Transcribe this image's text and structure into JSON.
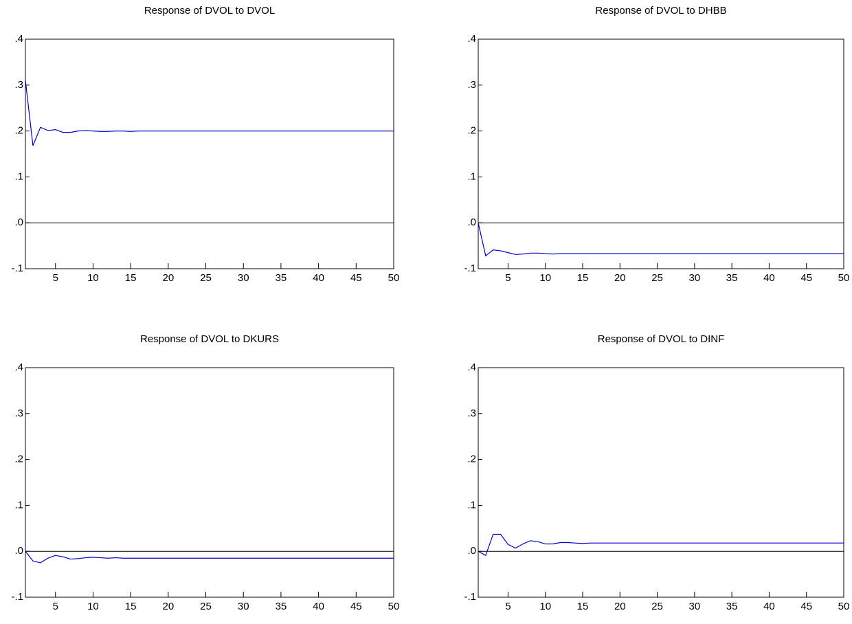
{
  "chart_data": [
    {
      "type": "line",
      "title": "Response of DVOL to DVOL",
      "x": [
        1,
        2,
        3,
        4,
        5,
        6,
        7,
        8,
        9,
        10,
        11,
        12,
        13,
        14,
        15,
        16,
        17,
        18,
        19,
        20,
        21,
        22,
        23,
        24,
        25,
        26,
        27,
        28,
        29,
        30,
        31,
        32,
        33,
        34,
        35,
        36,
        37,
        38,
        39,
        40,
        41,
        42,
        43,
        44,
        45,
        46,
        47,
        48,
        49,
        50
      ],
      "series": [
        {
          "color": "#0000cc",
          "values": [
            0.31,
            0.168,
            0.208,
            0.201,
            0.203,
            0.197,
            0.197,
            0.2,
            0.201,
            0.2,
            0.199,
            0.199,
            0.2,
            0.2,
            0.199,
            0.2,
            0.2,
            0.2,
            0.2,
            0.2,
            0.2,
            0.2,
            0.2,
            0.2,
            0.2,
            0.2,
            0.2,
            0.2,
            0.2,
            0.2,
            0.2,
            0.2,
            0.2,
            0.2,
            0.2,
            0.2,
            0.2,
            0.2,
            0.2,
            0.2,
            0.2,
            0.2,
            0.2,
            0.2,
            0.2,
            0.2,
            0.2,
            0.2,
            0.2,
            0.2
          ]
        }
      ],
      "xlim": [
        1,
        50
      ],
      "xticks": [
        5,
        10,
        15,
        20,
        25,
        30,
        35,
        40,
        45,
        50
      ],
      "ylim": [
        -0.1,
        0.4
      ],
      "yticks": [
        {
          "value": -0.1,
          "label": "-.1"
        },
        {
          "value": 0,
          "label": ".0"
        },
        {
          "value": 0.1,
          "label": ".1"
        },
        {
          "value": 0.2,
          "label": ".2"
        },
        {
          "value": 0.3,
          "label": ".3"
        },
        {
          "value": 0.4,
          "label": ".4"
        }
      ],
      "zero_line": true
    },
    {
      "type": "line",
      "title": "Response of DVOL to DHBB",
      "x": [
        1,
        2,
        3,
        4,
        5,
        6,
        7,
        8,
        9,
        10,
        11,
        12,
        13,
        14,
        15,
        16,
        17,
        18,
        19,
        20,
        21,
        22,
        23,
        24,
        25,
        26,
        27,
        28,
        29,
        30,
        31,
        32,
        33,
        34,
        35,
        36,
        37,
        38,
        39,
        40,
        41,
        42,
        43,
        44,
        45,
        46,
        47,
        48,
        49,
        50
      ],
      "series": [
        {
          "color": "#0000cc",
          "values": [
            0,
            -0.072,
            -0.059,
            -0.061,
            -0.065,
            -0.069,
            -0.068,
            -0.066,
            -0.066,
            -0.067,
            -0.068,
            -0.067,
            -0.067,
            -0.067,
            -0.067,
            -0.067,
            -0.067,
            -0.067,
            -0.067,
            -0.067,
            -0.067,
            -0.067,
            -0.067,
            -0.067,
            -0.067,
            -0.067,
            -0.067,
            -0.067,
            -0.067,
            -0.067,
            -0.067,
            -0.067,
            -0.067,
            -0.067,
            -0.067,
            -0.067,
            -0.067,
            -0.067,
            -0.067,
            -0.067,
            -0.067,
            -0.067,
            -0.067,
            -0.067,
            -0.067,
            -0.067,
            -0.067,
            -0.067,
            -0.067,
            -0.067
          ]
        }
      ],
      "xlim": [
        1,
        50
      ],
      "xticks": [
        5,
        10,
        15,
        20,
        25,
        30,
        35,
        40,
        45,
        50
      ],
      "ylim": [
        -0.1,
        0.4
      ],
      "yticks": [
        {
          "value": -0.1,
          "label": "-.1"
        },
        {
          "value": 0,
          "label": ".0"
        },
        {
          "value": 0.1,
          "label": ".1"
        },
        {
          "value": 0.2,
          "label": ".2"
        },
        {
          "value": 0.3,
          "label": ".3"
        },
        {
          "value": 0.4,
          "label": ".4"
        }
      ],
      "zero_line": true
    },
    {
      "type": "line",
      "title": "Response of DVOL to DKURS",
      "x": [
        1,
        2,
        3,
        4,
        5,
        6,
        7,
        8,
        9,
        10,
        11,
        12,
        13,
        14,
        15,
        16,
        17,
        18,
        19,
        20,
        21,
        22,
        23,
        24,
        25,
        26,
        27,
        28,
        29,
        30,
        31,
        32,
        33,
        34,
        35,
        36,
        37,
        38,
        39,
        40,
        41,
        42,
        43,
        44,
        45,
        46,
        47,
        48,
        49,
        50
      ],
      "series": [
        {
          "color": "#0000cc",
          "values": [
            0,
            -0.021,
            -0.025,
            -0.015,
            -0.009,
            -0.012,
            -0.017,
            -0.016,
            -0.014,
            -0.013,
            -0.014,
            -0.015,
            -0.014,
            -0.015,
            -0.015,
            -0.015,
            -0.015,
            -0.015,
            -0.015,
            -0.015,
            -0.015,
            -0.015,
            -0.015,
            -0.015,
            -0.015,
            -0.015,
            -0.015,
            -0.015,
            -0.015,
            -0.015,
            -0.015,
            -0.015,
            -0.015,
            -0.015,
            -0.015,
            -0.015,
            -0.015,
            -0.015,
            -0.015,
            -0.015,
            -0.015,
            -0.015,
            -0.015,
            -0.015,
            -0.015,
            -0.015,
            -0.015,
            -0.015,
            -0.015,
            -0.015
          ]
        }
      ],
      "xlim": [
        1,
        50
      ],
      "xticks": [
        5,
        10,
        15,
        20,
        25,
        30,
        35,
        40,
        45,
        50
      ],
      "ylim": [
        -0.1,
        0.4
      ],
      "yticks": [
        {
          "value": -0.1,
          "label": "-.1"
        },
        {
          "value": 0,
          "label": ".0"
        },
        {
          "value": 0.1,
          "label": ".1"
        },
        {
          "value": 0.2,
          "label": ".2"
        },
        {
          "value": 0.3,
          "label": ".3"
        },
        {
          "value": 0.4,
          "label": ".4"
        }
      ],
      "zero_line": true
    },
    {
      "type": "line",
      "title": "Response of DVOL to DINF",
      "x": [
        1,
        2,
        3,
        4,
        5,
        6,
        7,
        8,
        9,
        10,
        11,
        12,
        13,
        14,
        15,
        16,
        17,
        18,
        19,
        20,
        21,
        22,
        23,
        24,
        25,
        26,
        27,
        28,
        29,
        30,
        31,
        32,
        33,
        34,
        35,
        36,
        37,
        38,
        39,
        40,
        41,
        42,
        43,
        44,
        45,
        46,
        47,
        48,
        49,
        50
      ],
      "series": [
        {
          "color": "#0000cc",
          "values": [
            0,
            -0.009,
            0.037,
            0.037,
            0.015,
            0.007,
            0.016,
            0.023,
            0.021,
            0.016,
            0.016,
            0.019,
            0.019,
            0.018,
            0.017,
            0.018,
            0.018,
            0.018,
            0.018,
            0.018,
            0.018,
            0.018,
            0.018,
            0.018,
            0.018,
            0.018,
            0.018,
            0.018,
            0.018,
            0.018,
            0.018,
            0.018,
            0.018,
            0.018,
            0.018,
            0.018,
            0.018,
            0.018,
            0.018,
            0.018,
            0.018,
            0.018,
            0.018,
            0.018,
            0.018,
            0.018,
            0.018,
            0.018,
            0.018,
            0.018
          ]
        }
      ],
      "xlim": [
        1,
        50
      ],
      "xticks": [
        5,
        10,
        15,
        20,
        25,
        30,
        35,
        40,
        45,
        50
      ],
      "ylim": [
        -0.1,
        0.4
      ],
      "yticks": [
        {
          "value": -0.1,
          "label": "-.1"
        },
        {
          "value": 0,
          "label": ".0"
        },
        {
          "value": 0.1,
          "label": ".1"
        },
        {
          "value": 0.2,
          "label": ".2"
        },
        {
          "value": 0.3,
          "label": ".3"
        },
        {
          "value": 0.4,
          "label": ".4"
        }
      ],
      "zero_line": true
    }
  ]
}
